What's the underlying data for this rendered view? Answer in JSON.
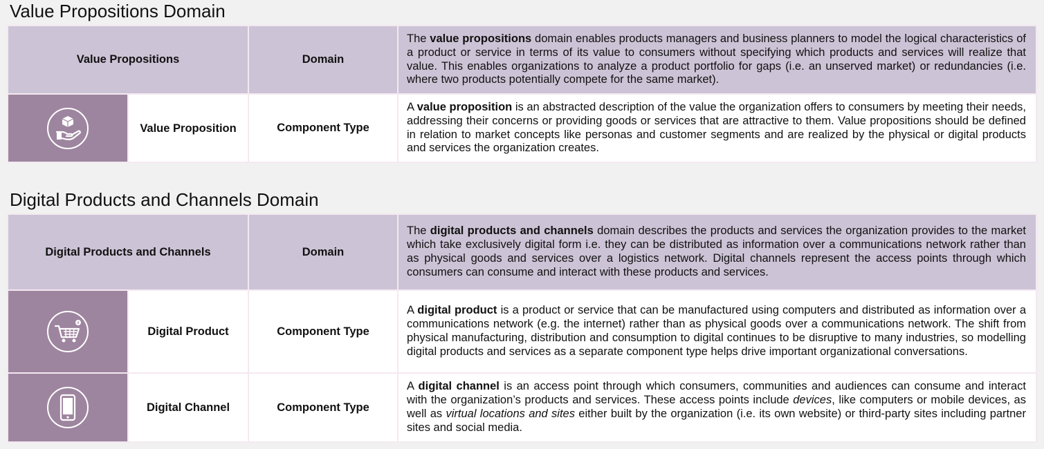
{
  "sections": [
    {
      "title": "Value Propositions Domain",
      "header": {
        "name": "Value Propositions",
        "type": "Domain",
        "desc_pre": "The ",
        "desc_bold": "value propositions",
        "desc_post": " domain enables products managers and business planners to model the logical characteristics of a product or service in terms of its value to consumers without specifying which products and services will realize that value. This enables organizations to analyze a product portfolio for gaps (i.e. an unserved market) or redundancies (i.e. where two products potentially compete for the same market)."
      },
      "rows": [
        {
          "icon": "hand-box-icon",
          "name": "Value Proposition",
          "type": "Component Type",
          "desc_pre": "A ",
          "desc_bold": "value proposition",
          "desc_post": " is an abstracted description of the value the organization offers to consumers by meeting their needs, addressing their concerns or providing goods or services that are attractive to them. Value propositions should be defined in relation to market concepts like personas and customer segments and are realized by the physical or digital products and services the organization creates."
        }
      ]
    },
    {
      "title": "Digital Products and Channels Domain",
      "header": {
        "name": "Digital Products and Channels",
        "type": "Domain",
        "desc_pre": "The ",
        "desc_bold": "digital products and channels",
        "desc_post": " domain describes the products and services the organization provides to the market which take exclusively digital form i.e. they can be distributed as information over a communications network rather than as physical goods and services over a logistics network. Digital channels represent the access points through which consumers can consume and interact with these products and services."
      },
      "rows": [
        {
          "icon": "shopping-cart-icon",
          "name": "Digital Product",
          "type": "Component Type",
          "desc_pre": "A ",
          "desc_bold": "digital product",
          "desc_post": " is a product or service that can be manufactured using computers and distributed as information over a communications network (e.g. the internet) rather than as physical goods over a communications network. The shift from physical manufacturing, distribution and consumption to digital continues to be disruptive to many industries, so modelling digital products and services as a separate component type helps drive important organizational conversations."
        },
        {
          "icon": "mobile-phone-icon",
          "name": "Digital Channel",
          "type": "Component Type",
          "desc_pre": "A ",
          "desc_bold": "digital channel",
          "desc_post1": " is an access point through which consumers, communities and audiences can consume and interact with the organization’s products and services. These access points include ",
          "desc_em1": "devices",
          "desc_post2": ", like computers or mobile devices, as well as ",
          "desc_em2": "virtual locations and sites",
          "desc_post3": " either built by the organization (i.e. its own website) or third-party sites including partner sites and social media."
        }
      ]
    }
  ]
}
